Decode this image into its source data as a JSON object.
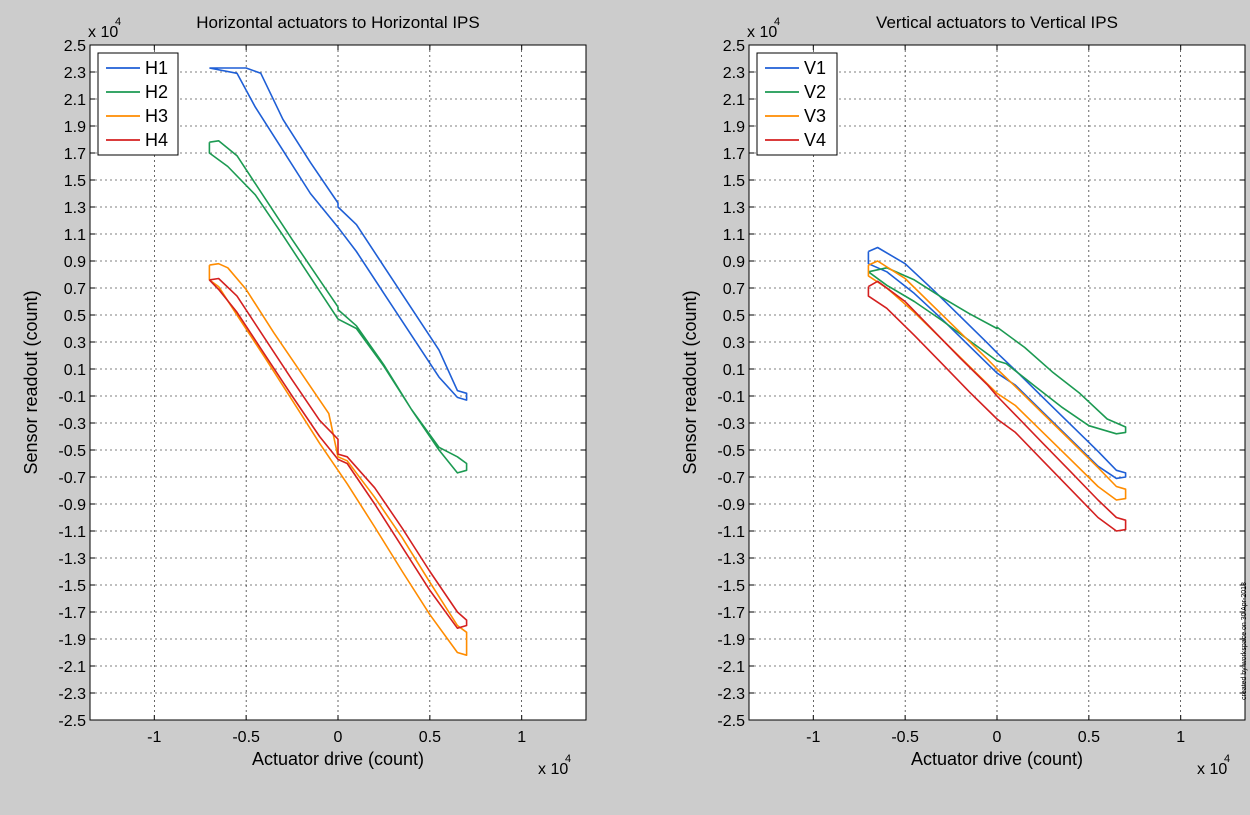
{
  "figure": {
    "credit": "created by workspace on 30 Apr-2013"
  },
  "chart_data": [
    {
      "type": "line",
      "title": "Horizontal actuators to Horizontal IPS",
      "xlabel": "Actuator drive (count)",
      "ylabel": "Sensor readout (count)",
      "x_exponent_label": "x 10",
      "y_exponent_label": "x 10",
      "exponent": "4",
      "xlim": [
        -13500,
        13500
      ],
      "ylim": [
        -25000,
        25000
      ],
      "xticks": [
        -10000,
        -5000,
        0,
        5000,
        10000
      ],
      "xtick_labels": [
        "-1",
        "-0.5",
        "0",
        "0.5",
        "1"
      ],
      "yticks": [
        25000,
        23000,
        21000,
        19000,
        17000,
        15000,
        13000,
        11000,
        9000,
        7000,
        5000,
        3000,
        1000,
        -1000,
        -3000,
        -5000,
        -7000,
        -9000,
        -11000,
        -13000,
        -15000,
        -17000,
        -19000,
        -21000,
        -23000,
        -25000
      ],
      "ytick_labels": [
        "2.5",
        "2.3",
        "2.1",
        "1.9",
        "1.7",
        "1.5",
        "1.3",
        "1.1",
        "0.9",
        "0.7",
        "0.5",
        "0.3",
        "0.1",
        "-0.1",
        "-0.3",
        "-0.5",
        "-0.7",
        "-0.9",
        "-1.1",
        "-1.3",
        "-1.5",
        "-1.7",
        "-1.9",
        "-2.1",
        "-2.3",
        "-2.5"
      ],
      "grid": true,
      "legend_position": "top-left",
      "series": [
        {
          "name": "H1",
          "color": "#1f5fd6",
          "x": [
            -7000,
            -5000,
            -4200,
            -3000,
            -1500,
            0,
            0,
            1000,
            2500,
            4000,
            5500,
            6500,
            7000,
            7000,
            6500,
            5500,
            4000,
            2500,
            1000,
            0,
            -1500,
            -3000,
            -4500,
            -5500,
            -7000
          ],
          "y": [
            23300,
            23300,
            22900,
            19500,
            16300,
            13300,
            13000,
            11700,
            8600,
            5500,
            2400,
            -600,
            -800,
            -1300,
            -1100,
            400,
            3500,
            6600,
            9700,
            11500,
            14000,
            17200,
            20400,
            22900,
            23300
          ]
        },
        {
          "name": "H2",
          "color": "#1c9a52",
          "x": [
            -7000,
            -6500,
            -5500,
            -4000,
            -2500,
            -1000,
            0,
            0,
            1000,
            2500,
            4000,
            5500,
            6500,
            7000,
            7000,
            6500,
            5500,
            4000,
            2500,
            1000,
            0,
            -1500,
            -3000,
            -4500,
            -6000,
            -7000,
            -7000
          ],
          "y": [
            17800,
            17900,
            16800,
            13700,
            10600,
            7600,
            5600,
            5400,
            4200,
            1300,
            -2000,
            -4800,
            -5500,
            -6000,
            -6500,
            -6700,
            -5000,
            -2000,
            1200,
            4000,
            4700,
            7800,
            10900,
            13900,
            16000,
            17000,
            17800
          ]
        },
        {
          "name": "H3",
          "color": "#ff8c00",
          "x": [
            -7000,
            -6500,
            -6000,
            -5000,
            -3500,
            -2000,
            -500,
            0,
            500,
            2000,
            3500,
            5000,
            6500,
            7000,
            7000,
            6500,
            5000,
            3500,
            2000,
            500,
            0,
            -1000,
            -2500,
            -4000,
            -5500,
            -6500,
            -7000,
            -7000
          ],
          "y": [
            8700,
            8800,
            8500,
            6900,
            3700,
            700,
            -2300,
            -5500,
            -5800,
            -8500,
            -11500,
            -14800,
            -18000,
            -18500,
            -20200,
            -20000,
            -17200,
            -14000,
            -10700,
            -7500,
            -6500,
            -4500,
            -1300,
            1900,
            5000,
            7100,
            7600,
            8700
          ]
        },
        {
          "name": "H4",
          "color": "#d42020",
          "x": [
            -7000,
            -6500,
            -5500,
            -4000,
            -2500,
            -1000,
            0,
            0,
            500,
            2000,
            3500,
            5000,
            6500,
            7000,
            7000,
            6500,
            5000,
            3500,
            2000,
            500,
            0,
            -1000,
            -2500,
            -4000,
            -5500,
            -6500,
            -7000
          ],
          "y": [
            7600,
            7700,
            6400,
            3300,
            200,
            -2800,
            -4200,
            -5300,
            -5500,
            -7800,
            -10800,
            -14000,
            -17000,
            -17600,
            -18000,
            -18200,
            -15400,
            -12200,
            -9000,
            -6000,
            -5700,
            -4000,
            -1000,
            2100,
            5200,
            6900,
            7600
          ]
        }
      ]
    },
    {
      "type": "line",
      "title": "Vertical actuators to Vertical IPS",
      "xlabel": "Actuator drive (count)",
      "ylabel": "Sensor readout (count)",
      "x_exponent_label": "x 10",
      "y_exponent_label": "x 10",
      "exponent": "4",
      "xlim": [
        -13500,
        13500
      ],
      "ylim": [
        -25000,
        25000
      ],
      "xticks": [
        -10000,
        -5000,
        0,
        5000,
        10000
      ],
      "xtick_labels": [
        "-1",
        "-0.5",
        "0",
        "0.5",
        "1"
      ],
      "yticks": [
        25000,
        23000,
        21000,
        19000,
        17000,
        15000,
        13000,
        11000,
        9000,
        7000,
        5000,
        3000,
        1000,
        -1000,
        -3000,
        -5000,
        -7000,
        -9000,
        -11000,
        -13000,
        -15000,
        -17000,
        -19000,
        -21000,
        -23000,
        -25000
      ],
      "ytick_labels": [
        "2.5",
        "2.3",
        "2.1",
        "1.9",
        "1.7",
        "1.5",
        "1.3",
        "1.1",
        "0.9",
        "0.7",
        "0.5",
        "0.3",
        "0.1",
        "-0.1",
        "-0.3",
        "-0.5",
        "-0.7",
        "-0.9",
        "-1.1",
        "-1.3",
        "-1.5",
        "-1.7",
        "-1.9",
        "-2.1",
        "-2.3",
        "-2.5"
      ],
      "grid": true,
      "legend_position": "top-left",
      "series": [
        {
          "name": "V1",
          "color": "#1f5fd6",
          "x": [
            -7000,
            -6500,
            -5000,
            -3500,
            -2000,
            -500,
            0,
            1000,
            2500,
            4000,
            5500,
            6500,
            7000,
            7000,
            6500,
            5500,
            4000,
            2500,
            1000,
            0,
            -1500,
            -3000,
            -4500,
            -6000,
            -7000,
            -7000
          ],
          "y": [
            9700,
            10000,
            8800,
            6900,
            4900,
            2900,
            2200,
            900,
            -1100,
            -3100,
            -5100,
            -6500,
            -6700,
            -7000,
            -7100,
            -6200,
            -4200,
            -2200,
            -200,
            700,
            2700,
            4700,
            6600,
            8200,
            8800,
            9700
          ]
        },
        {
          "name": "V2",
          "color": "#1c9a52",
          "x": [
            -7000,
            -6000,
            -4500,
            -3000,
            -1500,
            0,
            0,
            1500,
            3000,
            4500,
            6000,
            7000,
            7000,
            6500,
            5000,
            3500,
            2000,
            500,
            0,
            -1500,
            -3000,
            -4500,
            -6000,
            -7000
          ],
          "y": [
            8200,
            8500,
            7600,
            6300,
            5100,
            4000,
            4100,
            2600,
            800,
            -800,
            -2700,
            -3300,
            -3700,
            -3800,
            -3200,
            -1800,
            -200,
            1400,
            1600,
            3100,
            4600,
            6000,
            7200,
            8200
          ]
        },
        {
          "name": "V3",
          "color": "#ff8c00",
          "x": [
            -7000,
            -6500,
            -5000,
            -3500,
            -2000,
            -500,
            0,
            1000,
            2500,
            4000,
            5500,
            6500,
            7000,
            7000,
            6500,
            5500,
            4000,
            2500,
            1000,
            0,
            -1500,
            -3000,
            -4500,
            -6000,
            -7000,
            -7000
          ],
          "y": [
            8700,
            9000,
            7700,
            5700,
            3700,
            1700,
            1000,
            -300,
            -2300,
            -4300,
            -6300,
            -7700,
            -7900,
            -8600,
            -8700,
            -7700,
            -5700,
            -3700,
            -1700,
            -800,
            1200,
            3200,
            5200,
            7000,
            7900,
            8700
          ]
        },
        {
          "name": "V4",
          "color": "#d42020",
          "x": [
            -7000,
            -6500,
            -5000,
            -3500,
            -2000,
            -500,
            0,
            1000,
            2500,
            4000,
            5500,
            6500,
            7000,
            7000,
            6500,
            5500,
            4000,
            2500,
            1000,
            0,
            -1500,
            -3000,
            -4500,
            -6000,
            -7000,
            -7000
          ],
          "y": [
            7100,
            7500,
            6000,
            3900,
            1800,
            -200,
            -1000,
            -2400,
            -4500,
            -6600,
            -8700,
            -10000,
            -10200,
            -10900,
            -11000,
            -10000,
            -7900,
            -5800,
            -3700,
            -2700,
            -700,
            1400,
            3500,
            5500,
            6400,
            7100
          ]
        }
      ]
    }
  ]
}
